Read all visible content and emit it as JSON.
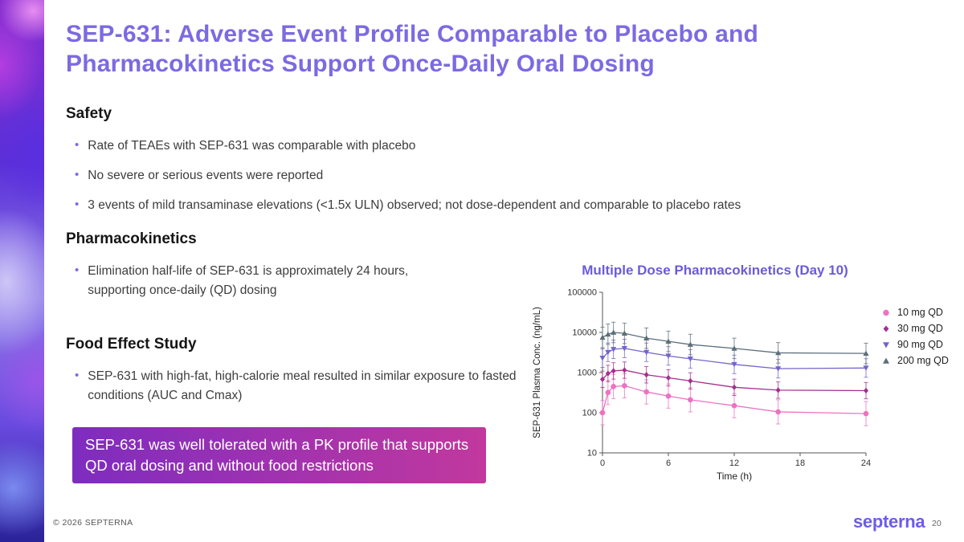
{
  "slide": {
    "title": "SEP-631: Adverse Event Profile Comparable to Placebo and Pharmacokinetics Support Once-Daily Oral Dosing",
    "footer_copyright": "© 2026 SEPTERNA",
    "logo_text": "septerna",
    "page_number": "20"
  },
  "sections": {
    "safety": {
      "heading": "Safety",
      "bullets": [
        "Rate of TEAEs with SEP-631 was comparable with placebo",
        "No severe or serious events were reported",
        "3 events of mild transaminase elevations (<1.5x ULN) observed; not dose-dependent and comparable to placebo rates"
      ]
    },
    "pharmacokinetics": {
      "heading": "Pharmacokinetics",
      "bullets": [
        "Elimination half-life of SEP-631 is approximately 24 hours, supporting once-daily (QD) dosing"
      ]
    },
    "food_effect": {
      "heading": "Food Effect Study",
      "bullets": [
        "SEP-631 with high-fat, high-calorie meal resulted in similar exposure to fasted conditions (AUC and Cmax)"
      ]
    },
    "callout": "SEP-631 was well tolerated with a PK profile that supports QD oral dosing and without food restrictions"
  },
  "colors": {
    "accent_purple": "#7c6ae2",
    "chart_title_purple": "#6b5bd8",
    "callout_gradient_start": "#7e2cc0",
    "callout_gradient_end": "#c2389e",
    "logo_purple": "#6c5ce7"
  },
  "chart_data": {
    "type": "line",
    "title": "Multiple Dose Pharmacokinetics (Day 10)",
    "xlabel": "Time (h)",
    "ylabel": "SEP-631 Plasma Conc. (ng/mL)",
    "y_scale": "log",
    "ylim": [
      10,
      100000
    ],
    "y_ticks": [
      10,
      100,
      1000,
      10000,
      100000
    ],
    "x_ticks": [
      0,
      6,
      12,
      18,
      24
    ],
    "grid": false,
    "legend_position": "right",
    "error_bars": true,
    "x": [
      0,
      0.5,
      1,
      2,
      4,
      6,
      8,
      12,
      16,
      24
    ],
    "series": [
      {
        "name": "10 mg QD",
        "marker": "circle",
        "color": "#ed72c2",
        "values": [
          100,
          320,
          450,
          470,
          330,
          260,
          210,
          150,
          105,
          95
        ],
        "error_factor": 2.0
      },
      {
        "name": "30 mg QD",
        "marker": "diamond",
        "color": "#a2308f",
        "values": [
          680,
          950,
          1100,
          1150,
          880,
          740,
          620,
          430,
          365,
          355
        ],
        "error_factor": 1.6
      },
      {
        "name": "90 mg QD",
        "marker": "triangle-down",
        "color": "#7465c9",
        "values": [
          2300,
          3200,
          3800,
          4000,
          3200,
          2600,
          2200,
          1600,
          1250,
          1300
        ],
        "error_factor": 1.7
      },
      {
        "name": "200 mg QD",
        "marker": "triangle-up",
        "color": "#5c6f79",
        "values": [
          7500,
          9000,
          10000,
          9500,
          7200,
          6000,
          5000,
          4000,
          3100,
          3000
        ],
        "error_factor": 1.8
      }
    ]
  }
}
